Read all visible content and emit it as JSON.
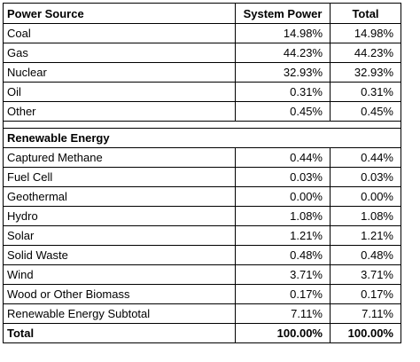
{
  "table": {
    "header": [
      "Power Source",
      "System Power",
      "Total"
    ],
    "rows": [
      [
        "Coal",
        "14.98%",
        "14.98%"
      ],
      [
        "Gas",
        "44.23%",
        "44.23%"
      ],
      [
        "Nuclear",
        "32.93%",
        "32.93%"
      ],
      [
        "Oil",
        "0.31%",
        "0.31%"
      ],
      [
        "Other",
        "0.45%",
        "0.45%"
      ]
    ],
    "renewable": {
      "title": "Renewable Energy",
      "rows": [
        [
          "Captured Methane",
          "0.44%",
          "0.44%"
        ],
        [
          "Fuel Cell",
          "0.03%",
          "0.03%"
        ],
        [
          "Geothermal",
          "0.00%",
          "0.00%"
        ],
        [
          "Hydro",
          "1.08%",
          "1.08%"
        ],
        [
          "Solar",
          "1.21%",
          "1.21%"
        ],
        [
          "Solid Waste",
          "0.48%",
          "0.48%"
        ],
        [
          "Wind",
          "3.71%",
          "3.71%"
        ],
        [
          "Wood or Other Biomass",
          "0.17%",
          "0.17%"
        ],
        [
          "Renewable Energy Subtotal",
          "7.11%",
          "7.11%"
        ]
      ]
    },
    "total": [
      "Total",
      "100.00%",
      "100.00%"
    ]
  }
}
